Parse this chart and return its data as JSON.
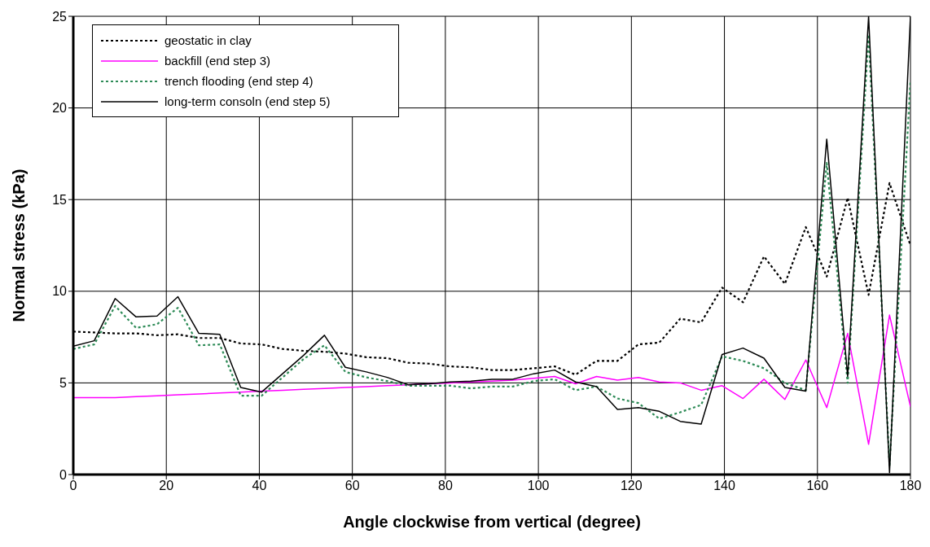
{
  "chart_data": {
    "type": "line",
    "xlabel": "Angle clockwise from vertical (degree)",
    "ylabel": "Normal stress (kPa)",
    "x": [
      0,
      4.5,
      9,
      13.5,
      18,
      22.5,
      27,
      31.5,
      36,
      40.5,
      45,
      49.5,
      54,
      58.5,
      63,
      67.5,
      72,
      76.5,
      81,
      85.5,
      90,
      94.5,
      99,
      103.5,
      108,
      112.5,
      117,
      121.5,
      126,
      130.5,
      135,
      139.5,
      144,
      148.5,
      153,
      157.5,
      162,
      166.5,
      171,
      175.5,
      180
    ],
    "xlim": [
      0,
      180
    ],
    "xticks": [
      0,
      20,
      40,
      60,
      80,
      100,
      120,
      140,
      160,
      180
    ],
    "ylim": [
      0,
      25
    ],
    "yticks": [
      0,
      5,
      10,
      15,
      20,
      25
    ],
    "grid": true,
    "legend": "top left",
    "marker": "none",
    "series": [
      {
        "name": "geostatic in clay",
        "color": "#000000",
        "line_style": "dotted",
        "values": [
          7.8,
          7.75,
          7.7,
          7.7,
          7.6,
          7.65,
          7.45,
          7.45,
          7.15,
          7.1,
          6.85,
          6.75,
          6.7,
          6.6,
          6.4,
          6.35,
          6.1,
          6.05,
          5.9,
          5.85,
          5.7,
          5.7,
          5.8,
          5.9,
          5.45,
          6.2,
          6.2,
          7.1,
          7.2,
          8.5,
          8.3,
          10.2,
          9.4,
          11.9,
          10.4,
          13.5,
          10.8,
          15.1,
          9.8,
          15.9,
          12.5
        ]
      },
      {
        "name": "backfill (end step 3)",
        "color": "#ff00ff",
        "line_style": "solid",
        "values": [
          4.2,
          4.2,
          4.2,
          4.25,
          4.3,
          4.35,
          4.4,
          4.45,
          4.5,
          4.55,
          4.6,
          4.65,
          4.7,
          4.75,
          4.8,
          4.85,
          4.9,
          4.95,
          5.0,
          5.05,
          5.1,
          5.15,
          5.25,
          5.35,
          4.95,
          5.35,
          5.15,
          5.3,
          5.05,
          5.0,
          4.6,
          4.85,
          4.15,
          5.2,
          4.1,
          6.25,
          3.65,
          7.7,
          1.65,
          8.7,
          3.7
        ]
      },
      {
        "name": "trench flooding (end step 4)",
        "color": "#2e8b57",
        "line_style": "dotted",
        "values": [
          6.85,
          7.1,
          9.2,
          8.0,
          8.2,
          9.1,
          7.05,
          7.1,
          4.3,
          4.3,
          5.3,
          6.3,
          7.05,
          5.6,
          5.3,
          5.1,
          4.85,
          4.85,
          4.85,
          4.7,
          4.8,
          4.8,
          5.1,
          5.2,
          4.6,
          4.8,
          4.15,
          3.9,
          3.05,
          3.4,
          3.8,
          6.45,
          6.2,
          5.8,
          5.0,
          4.6,
          17.0,
          5.0,
          24.0,
          0.5,
          21.5
        ]
      },
      {
        "name": "long-term consoln (end step 5)",
        "color": "#000000",
        "line_style": "solid",
        "values": [
          7.0,
          7.3,
          9.6,
          8.6,
          8.65,
          9.7,
          7.7,
          7.65,
          4.75,
          4.5,
          5.5,
          6.5,
          7.6,
          5.85,
          5.6,
          5.3,
          4.9,
          4.95,
          5.05,
          5.1,
          5.2,
          5.2,
          5.5,
          5.7,
          5.05,
          4.8,
          3.55,
          3.65,
          3.45,
          2.9,
          2.75,
          6.55,
          6.9,
          6.35,
          4.75,
          4.55,
          18.3,
          5.35,
          25,
          0.1,
          25
        ]
      }
    ]
  }
}
